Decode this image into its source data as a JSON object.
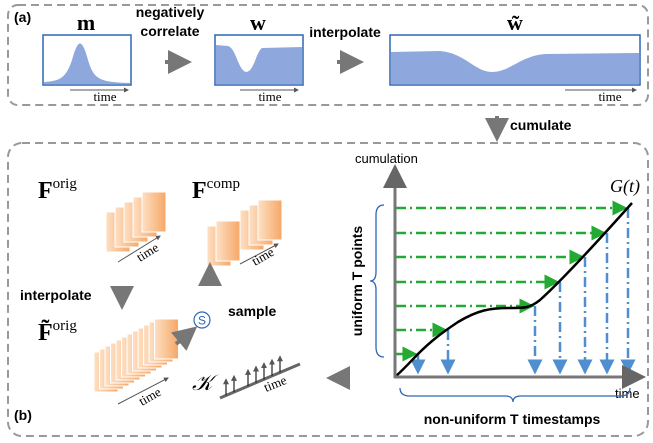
{
  "panel_a": {
    "label": "(a)",
    "m": {
      "symbol": "m",
      "axis": "time"
    },
    "step1": [
      "negatively",
      "correlate"
    ],
    "w": {
      "symbol": "w",
      "axis": "time"
    },
    "step2": "interpolate",
    "w_tilde": {
      "symbol": "w̃",
      "axis": "time"
    }
  },
  "step_between": "cumulate",
  "panel_b": {
    "label": "(b)",
    "f_orig": {
      "base": "F",
      "sup": "orig",
      "axis": "time"
    },
    "interpolate": "interpolate",
    "f_orig_tilde": {
      "base": "F̃",
      "sup": "orig",
      "axis": "time"
    },
    "f_comp": {
      "base": "F",
      "sup": "comp",
      "axis": "time"
    },
    "sampler": {
      "symbol": "S",
      "label": "sample"
    },
    "kernel": {
      "symbol": "𝒦",
      "axis": "time"
    },
    "plot": {
      "y_label": "cumulation",
      "x_label": "time",
      "curve": "G(t)",
      "y_brace": "uniform T points",
      "x_brace": "non-uniform T timestamps"
    }
  }
}
